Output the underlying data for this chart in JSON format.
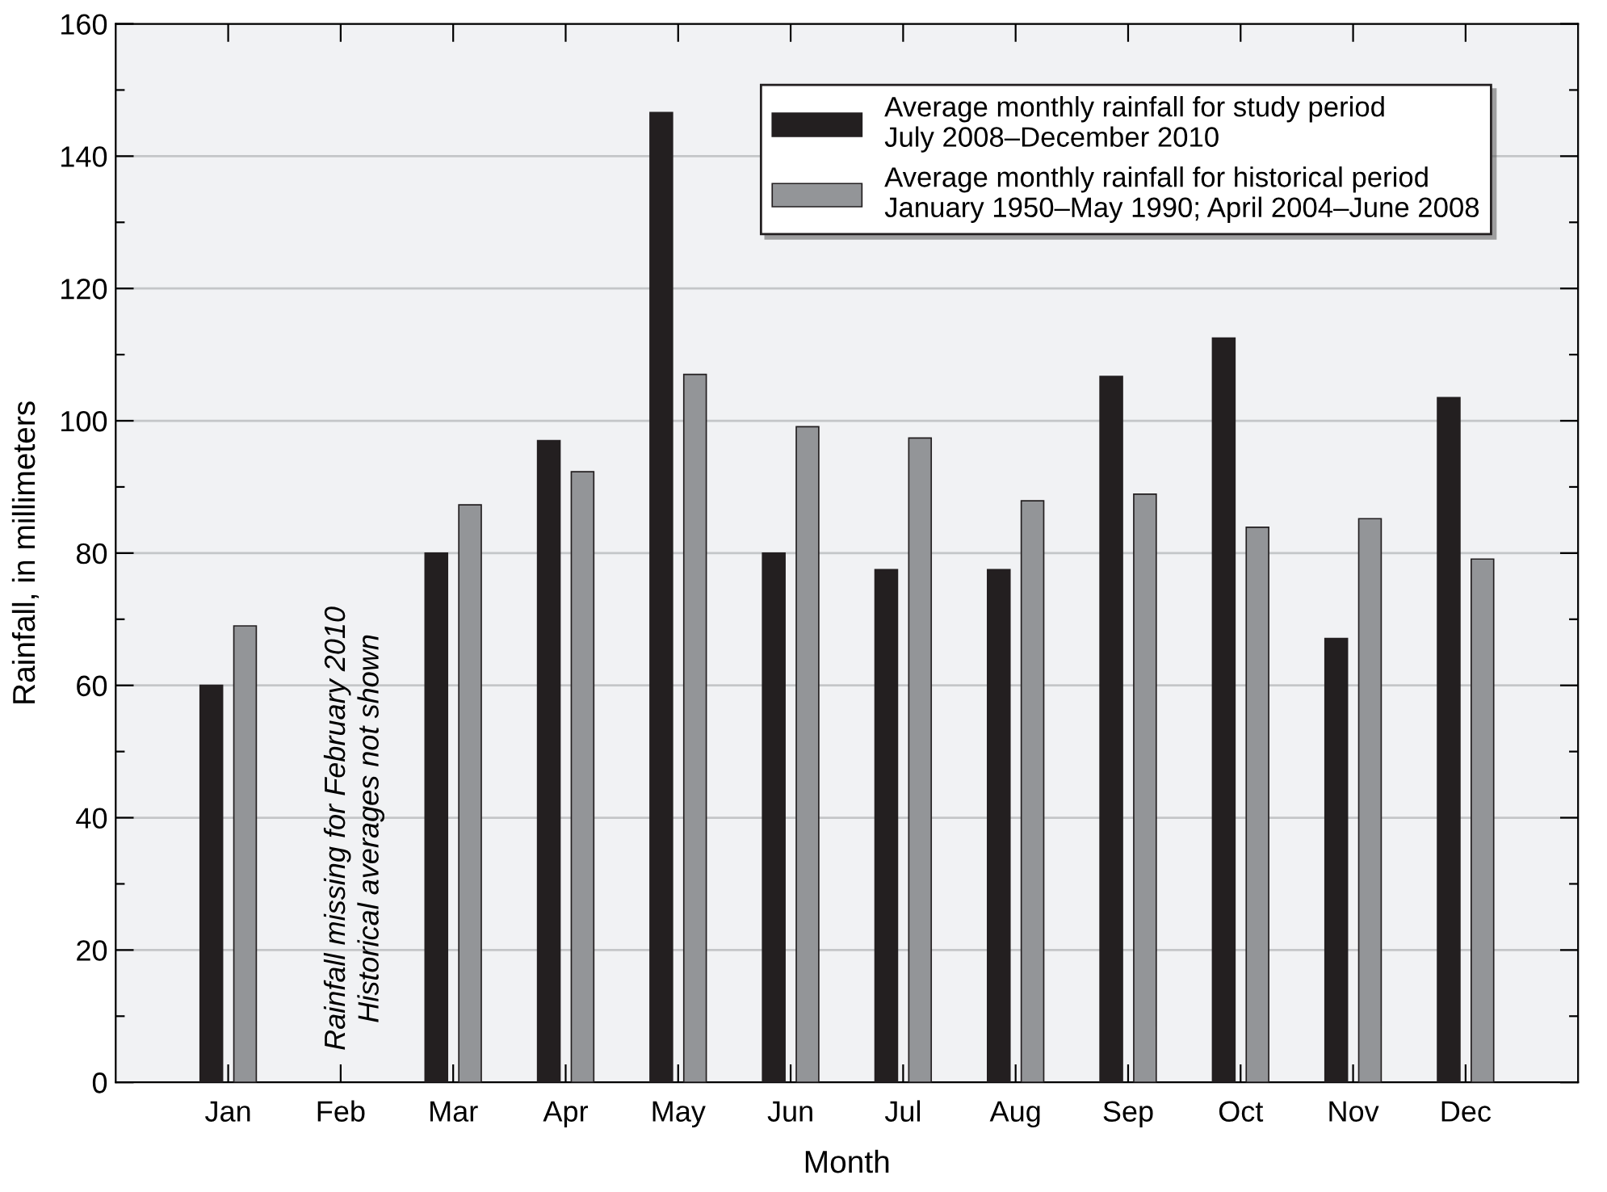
{
  "chart_data": {
    "type": "bar",
    "xlabel": "Month",
    "ylabel": "Rainfall, in millimeters",
    "categories": [
      "Jan",
      "Feb",
      "Mar",
      "Apr",
      "May",
      "Jun",
      "Jul",
      "Aug",
      "Sep",
      "Oct",
      "Nov",
      "Dec"
    ],
    "series": [
      {
        "name": "Average monthly rainfall for study period\nJuly 2008–December 2010",
        "color": "#231f20",
        "values": [
          60.0,
          null,
          80.0,
          97.0,
          146.6,
          80.0,
          77.5,
          77.5,
          106.7,
          112.5,
          67.1,
          103.5
        ]
      },
      {
        "name": "Average monthly rainfall for historical period\nJanuary 1950–May 1990; April 2004–June 2008",
        "color": "#939598",
        "values": [
          69.0,
          null,
          87.3,
          92.3,
          107.0,
          99.1,
          97.4,
          87.9,
          88.9,
          83.9,
          85.2,
          79.1
        ]
      }
    ],
    "ylim": [
      0,
      160
    ],
    "yticks": [
      0,
      {
        "value": 10,
        "label": null
      },
      20,
      {
        "value": 30,
        "label": null
      },
      40,
      {
        "value": 50,
        "label": null
      },
      60,
      {
        "value": 70,
        "label": null
      },
      80,
      {
        "value": 90,
        "label": null
      },
      100,
      {
        "value": 110,
        "label": null
      },
      120,
      {
        "value": 130,
        "label": null
      },
      140,
      {
        "value": 150,
        "label": null
      },
      160
    ],
    "grid": "y",
    "legend": "top right",
    "annotations": [
      "Rainfall missing for February 2010\nHistorical averages not shown"
    ]
  }
}
